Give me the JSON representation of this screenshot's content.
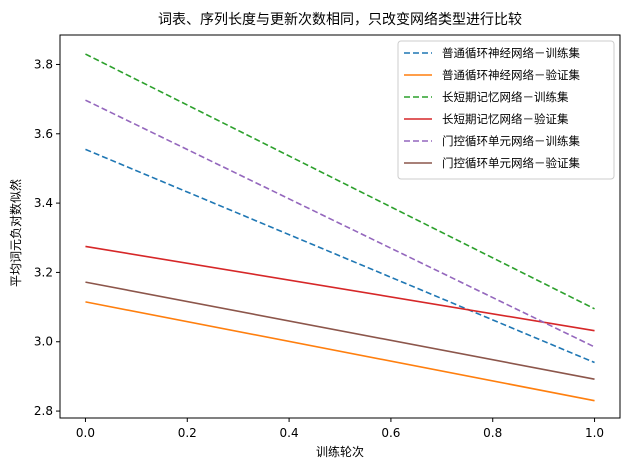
{
  "chart_data": {
    "type": "line",
    "title": "词表、序列长度与更新次数相同，只改变网络类型进行比较",
    "xlabel": "训练轮次",
    "ylabel": "平均词元负对数似然",
    "xlim": [
      -0.05,
      1.05
    ],
    "ylim": [
      2.78,
      3.885
    ],
    "xticks": [
      0.0,
      0.2,
      0.4,
      0.6,
      0.8,
      1.0
    ],
    "xtick_labels": [
      "0.0",
      "0.2",
      "0.4",
      "0.6",
      "0.8",
      "1.0"
    ],
    "yticks": [
      2.8,
      3.0,
      3.2,
      3.4,
      3.6,
      3.8
    ],
    "ytick_labels": [
      "2.8",
      "3.0",
      "3.2",
      "3.4",
      "3.6",
      "3.8"
    ],
    "grid": false,
    "legend_position": "top-right",
    "series": [
      {
        "name": "普通循环神经网络－训练集",
        "x": [
          0.0,
          1.0
        ],
        "values": [
          3.555,
          2.94
        ],
        "color": "#1f77b4",
        "dashed": true
      },
      {
        "name": "普通循环神经网络－验证集",
        "x": [
          0.0,
          1.0
        ],
        "values": [
          3.115,
          2.83
        ],
        "color": "#ff7f0e",
        "dashed": false
      },
      {
        "name": "长短期记忆网络－训练集",
        "x": [
          0.0,
          1.0
        ],
        "values": [
          3.83,
          3.095
        ],
        "color": "#2ca02c",
        "dashed": true
      },
      {
        "name": "长短期记忆网络－验证集",
        "x": [
          0.0,
          1.0
        ],
        "values": [
          3.275,
          3.032
        ],
        "color": "#d62728",
        "dashed": false
      },
      {
        "name": "门控循环单元网络－训练集",
        "x": [
          0.0,
          1.0
        ],
        "values": [
          3.697,
          2.985
        ],
        "color": "#9467bd",
        "dashed": true
      },
      {
        "name": "门控循环单元网络－验证集",
        "x": [
          0.0,
          1.0
        ],
        "values": [
          3.172,
          2.892
        ],
        "color": "#8c564b",
        "dashed": false
      }
    ]
  }
}
